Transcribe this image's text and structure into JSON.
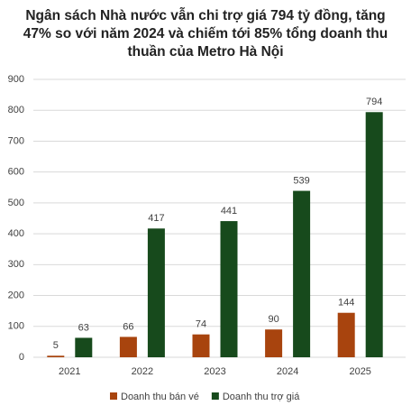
{
  "chart_data": {
    "type": "bar",
    "title": "Ngân sách Nhà nước vẫn chi trợ giá 794 tỷ đồng, tăng 47% so với năm 2024 và chiếm tới 85% tổng doanh thu thuần của Metro Hà Nội",
    "categories": [
      "2021",
      "2022",
      "2023",
      "2024",
      "2025"
    ],
    "series": [
      {
        "name": "Doanh thu bán vé",
        "color": "#a8440e",
        "values": [
          5,
          66,
          74,
          90,
          144
        ]
      },
      {
        "name": "Doanh thu trợ giá",
        "color": "#174a1c",
        "values": [
          63,
          417,
          441,
          539,
          794
        ]
      }
    ],
    "ylim": [
      0,
      900
    ],
    "yticks": [
      0,
      100,
      200,
      300,
      400,
      500,
      600,
      700,
      800,
      900
    ],
    "grid": true,
    "legend": "bottom"
  }
}
